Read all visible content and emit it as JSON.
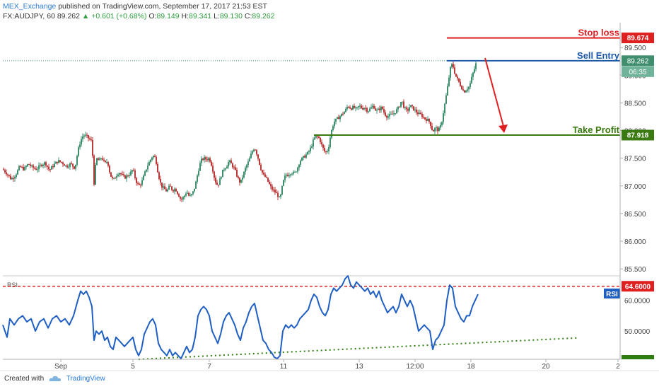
{
  "header": {
    "publisher": "MEX_Exchange",
    "published_text": "published on TradingView.com, September 17, 2017 21:53 EST",
    "symbol": "FX:AUDJPY, 60",
    "last": "89.262",
    "change": "+0.601 (+0.68%)",
    "open_label": "O:",
    "open": "89.149",
    "high_label": "H:",
    "high": "89.341",
    "low_label": "L:",
    "low": "89.130",
    "close_label": "C:",
    "close": "89.262"
  },
  "footer": {
    "created_with": "Created with",
    "brand": "TradingView"
  },
  "colors": {
    "up": "#3f8f6f",
    "down": "#b83a3a",
    "stop": "#e02020",
    "entry": "#1e5aa8",
    "take_profit": "#3a7a10",
    "rsi_line": "#1f5fc4",
    "rsi_level": "#e02020",
    "rsi_trend": "#2e7d10"
  },
  "chart_data": [
    {
      "type": "candlestick",
      "y_axis_ticks": [
        "89.500",
        "89.000",
        "88.500",
        "88.000",
        "87.500",
        "87.000",
        "86.500",
        "86.000",
        "85.500"
      ],
      "x_axis_ticks": [
        "Sep",
        "5",
        "7",
        "11",
        "13",
        "12:00",
        "18",
        "20",
        "2"
      ],
      "ylim": [
        85.4,
        89.95
      ],
      "current_price_label": "89.262",
      "countdown": "06:35",
      "levels": [
        {
          "name": "Stop loss",
          "value": 89.674,
          "label": "89.674",
          "color": "#e02020"
        },
        {
          "name": "Sell Entry",
          "value": 89.262,
          "label": "89.262",
          "color": "#1e5aa8"
        },
        {
          "name": "Take Profit",
          "value": 87.918,
          "label": "87.918",
          "color": "#3a7a10"
        }
      ],
      "close_path": [
        [
          0,
          87.3
        ],
        [
          6,
          87.22
        ],
        [
          12,
          87.12
        ],
        [
          18,
          87.2
        ],
        [
          24,
          87.35
        ],
        [
          30,
          87.3
        ],
        [
          36,
          87.4
        ],
        [
          42,
          87.33
        ],
        [
          48,
          87.3
        ],
        [
          54,
          87.38
        ],
        [
          60,
          87.42
        ],
        [
          66,
          87.28
        ],
        [
          72,
          87.38
        ],
        [
          78,
          87.45
        ],
        [
          84,
          87.42
        ],
        [
          90,
          87.35
        ],
        [
          96,
          87.4
        ],
        [
          102,
          87.32
        ],
        [
          106,
          87.62
        ],
        [
          110,
          87.82
        ],
        [
          114,
          87.92
        ],
        [
          118,
          87.9
        ],
        [
          122,
          87.85
        ],
        [
          126,
          87.8
        ],
        [
          129,
          87.05
        ],
        [
          132,
          87.5
        ],
        [
          136,
          87.45
        ],
        [
          140,
          87.52
        ],
        [
          144,
          87.4
        ],
        [
          148,
          87.45
        ],
        [
          152,
          87.2
        ],
        [
          156,
          87.1
        ],
        [
          160,
          87.18
        ],
        [
          164,
          87.25
        ],
        [
          168,
          87.2
        ],
        [
          172,
          87.15
        ],
        [
          176,
          87.18
        ],
        [
          180,
          87.22
        ],
        [
          184,
          87.3
        ],
        [
          188,
          87.1
        ],
        [
          192,
          87.0
        ],
        [
          196,
          87.05
        ],
        [
          200,
          87.2
        ],
        [
          204,
          87.35
        ],
        [
          208,
          87.45
        ],
        [
          212,
          87.55
        ],
        [
          216,
          87.5
        ],
        [
          220,
          87.2
        ],
        [
          224,
          87.0
        ],
        [
          228,
          86.95
        ],
        [
          232,
          86.9
        ],
        [
          236,
          87.0
        ],
        [
          240,
          86.92
        ],
        [
          244,
          86.95
        ],
        [
          248,
          86.85
        ],
        [
          252,
          86.75
        ],
        [
          256,
          86.8
        ],
        [
          260,
          86.9
        ],
        [
          264,
          86.8
        ],
        [
          268,
          86.85
        ],
        [
          272,
          87.0
        ],
        [
          276,
          87.25
        ],
        [
          280,
          87.45
        ],
        [
          284,
          87.5
        ],
        [
          288,
          87.48
        ],
        [
          292,
          87.5
        ],
        [
          296,
          87.35
        ],
        [
          300,
          87.1
        ],
        [
          304,
          87.0
        ],
        [
          308,
          87.15
        ],
        [
          312,
          87.3
        ],
        [
          316,
          87.35
        ],
        [
          320,
          87.45
        ],
        [
          324,
          87.38
        ],
        [
          328,
          87.3
        ],
        [
          332,
          87.15
        ],
        [
          336,
          87.05
        ],
        [
          340,
          87.2
        ],
        [
          344,
          87.35
        ],
        [
          348,
          87.45
        ],
        [
          352,
          87.6
        ],
        [
          356,
          87.7
        ],
        [
          360,
          87.55
        ],
        [
          364,
          87.35
        ],
        [
          368,
          87.2
        ],
        [
          372,
          87.15
        ],
        [
          376,
          87.05
        ],
        [
          380,
          86.95
        ],
        [
          384,
          86.9
        ],
        [
          388,
          86.85
        ],
        [
          392,
          86.75
        ],
        [
          396,
          87.05
        ],
        [
          400,
          87.2
        ],
        [
          404,
          87.2
        ],
        [
          408,
          87.25
        ],
        [
          412,
          87.22
        ],
        [
          416,
          87.3
        ],
        [
          420,
          87.45
        ],
        [
          424,
          87.5
        ],
        [
          428,
          87.55
        ],
        [
          432,
          87.6
        ],
        [
          436,
          87.7
        ],
        [
          440,
          87.85
        ],
        [
          444,
          87.9
        ],
        [
          448,
          87.85
        ],
        [
          452,
          87.7
        ],
        [
          456,
          87.6
        ],
        [
          460,
          87.65
        ],
        [
          464,
          87.95
        ],
        [
          468,
          88.15
        ],
        [
          472,
          88.2
        ],
        [
          476,
          88.25
        ],
        [
          480,
          88.3
        ],
        [
          484,
          88.35
        ],
        [
          488,
          88.45
        ],
        [
          492,
          88.4
        ],
        [
          496,
          88.42
        ],
        [
          500,
          88.38
        ],
        [
          504,
          88.45
        ],
        [
          508,
          88.4
        ],
        [
          512,
          88.42
        ],
        [
          516,
          88.35
        ],
        [
          520,
          88.4
        ],
        [
          524,
          88.45
        ],
        [
          528,
          88.35
        ],
        [
          532,
          88.38
        ],
        [
          536,
          88.42
        ],
        [
          540,
          88.3
        ],
        [
          544,
          88.25
        ],
        [
          548,
          88.28
        ],
        [
          552,
          88.3
        ],
        [
          556,
          88.35
        ],
        [
          560,
          88.42
        ],
        [
          564,
          88.55
        ],
        [
          568,
          88.4
        ],
        [
          572,
          88.35
        ],
        [
          576,
          88.45
        ],
        [
          580,
          88.4
        ],
        [
          584,
          88.35
        ],
        [
          588,
          88.3
        ],
        [
          592,
          88.28
        ],
        [
          596,
          88.22
        ],
        [
          600,
          88.2
        ],
        [
          604,
          88.15
        ],
        [
          608,
          87.98
        ],
        [
          612,
          88.05
        ],
        [
          616,
          88.0
        ],
        [
          620,
          88.1
        ],
        [
          624,
          88.4
        ],
        [
          628,
          88.7
        ],
        [
          632,
          89.05
        ],
        [
          634,
          89.2
        ],
        [
          637,
          89.15
        ],
        [
          640,
          89.0
        ],
        [
          644,
          88.9
        ],
        [
          648,
          88.8
        ],
        [
          652,
          88.7
        ],
        [
          656,
          88.75
        ],
        [
          660,
          88.8
        ],
        [
          664,
          89.0
        ],
        [
          668,
          89.15
        ],
        [
          670,
          89.26
        ]
      ]
    },
    {
      "type": "line",
      "title": "RSI",
      "badge": "RSI",
      "y_axis_ticks": [
        "60.0000",
        "50.0000"
      ],
      "ylim": [
        40.8,
        68.0
      ],
      "level": {
        "value": 64.6,
        "label": "64.6000"
      },
      "trendline": {
        "from": [
          192,
          40.8
        ],
        "to": [
          815,
          47.8
        ]
      },
      "series": [
        [
          0,
          52
        ],
        [
          6,
          48
        ],
        [
          10,
          54
        ],
        [
          16,
          52
        ],
        [
          22,
          54
        ],
        [
          28,
          55
        ],
        [
          34,
          53
        ],
        [
          40,
          54
        ],
        [
          46,
          50
        ],
        [
          52,
          53
        ],
        [
          58,
          54
        ],
        [
          64,
          51
        ],
        [
          70,
          54
        ],
        [
          76,
          55
        ],
        [
          82,
          53
        ],
        [
          88,
          54
        ],
        [
          94,
          52
        ],
        [
          100,
          55
        ],
        [
          106,
          60
        ],
        [
          110,
          63
        ],
        [
          114,
          62
        ],
        [
          118,
          63
        ],
        [
          122,
          61
        ],
        [
          126,
          58
        ],
        [
          129,
          47
        ],
        [
          132,
          50
        ],
        [
          136,
          49
        ],
        [
          140,
          50
        ],
        [
          144,
          47
        ],
        [
          148,
          48
        ],
        [
          152,
          45
        ],
        [
          156,
          44
        ],
        [
          160,
          48
        ],
        [
          164,
          47
        ],
        [
          168,
          46
        ],
        [
          172,
          45
        ],
        [
          176,
          46
        ],
        [
          180,
          47
        ],
        [
          184,
          48
        ],
        [
          188,
          44
        ],
        [
          192,
          42
        ],
        [
          196,
          44
        ],
        [
          200,
          49
        ],
        [
          204,
          51
        ],
        [
          208,
          53
        ],
        [
          212,
          54
        ],
        [
          216,
          52
        ],
        [
          220,
          46
        ],
        [
          224,
          44
        ],
        [
          228,
          43
        ],
        [
          232,
          42
        ],
        [
          236,
          44
        ],
        [
          240,
          42
        ],
        [
          244,
          43
        ],
        [
          248,
          42
        ],
        [
          252,
          41
        ],
        [
          256,
          43
        ],
        [
          260,
          45
        ],
        [
          264,
          43
        ],
        [
          268,
          44
        ],
        [
          272,
          48
        ],
        [
          276,
          55
        ],
        [
          280,
          57
        ],
        [
          284,
          58
        ],
        [
          288,
          57
        ],
        [
          292,
          55
        ],
        [
          296,
          50
        ],
        [
          300,
          48
        ],
        [
          304,
          46
        ],
        [
          308,
          49
        ],
        [
          312,
          53
        ],
        [
          316,
          55
        ],
        [
          320,
          56
        ],
        [
          324,
          54
        ],
        [
          328,
          52
        ],
        [
          332,
          49
        ],
        [
          336,
          47
        ],
        [
          340,
          51
        ],
        [
          344,
          53
        ],
        [
          348,
          56
        ],
        [
          352,
          58
        ],
        [
          356,
          59
        ],
        [
          360,
          55
        ],
        [
          364,
          51
        ],
        [
          368,
          47
        ],
        [
          372,
          46
        ],
        [
          376,
          44
        ],
        [
          380,
          43
        ],
        [
          384,
          41.5
        ],
        [
          388,
          41
        ],
        [
          392,
          42
        ],
        [
          396,
          50
        ],
        [
          400,
          52
        ],
        [
          404,
          51
        ],
        [
          408,
          52
        ],
        [
          412,
          51
        ],
        [
          416,
          52
        ],
        [
          420,
          54
        ],
        [
          424,
          55
        ],
        [
          428,
          56
        ],
        [
          432,
          57
        ],
        [
          436,
          60
        ],
        [
          440,
          62
        ],
        [
          444,
          61
        ],
        [
          448,
          58
        ],
        [
          452,
          56
        ],
        [
          456,
          55
        ],
        [
          460,
          57
        ],
        [
          464,
          62
        ],
        [
          468,
          64
        ],
        [
          472,
          63
        ],
        [
          476,
          64
        ],
        [
          480,
          65
        ],
        [
          484,
          67
        ],
        [
          488,
          68
        ],
        [
          492,
          65
        ],
        [
          496,
          64
        ],
        [
          500,
          66
        ],
        [
          504,
          65
        ],
        [
          508,
          64
        ],
        [
          512,
          63
        ],
        [
          516,
          64
        ],
        [
          520,
          62
        ],
        [
          524,
          63
        ],
        [
          528,
          61
        ],
        [
          532,
          63
        ],
        [
          536,
          60
        ],
        [
          540,
          58
        ],
        [
          544,
          56
        ],
        [
          548,
          57
        ],
        [
          552,
          58
        ],
        [
          556,
          56
        ],
        [
          560,
          58
        ],
        [
          564,
          62
        ],
        [
          568,
          60
        ],
        [
          572,
          58
        ],
        [
          576,
          60
        ],
        [
          580,
          58
        ],
        [
          584,
          54
        ],
        [
          588,
          50
        ],
        [
          592,
          51
        ],
        [
          596,
          52
        ],
        [
          600,
          51
        ],
        [
          604,
          50
        ],
        [
          608,
          44
        ],
        [
          612,
          47
        ],
        [
          616,
          48
        ],
        [
          620,
          50
        ],
        [
          624,
          52
        ],
        [
          628,
          60
        ],
        [
          632,
          65
        ],
        [
          636,
          64
        ],
        [
          640,
          58
        ],
        [
          644,
          56
        ],
        [
          648,
          54
        ],
        [
          652,
          53
        ],
        [
          656,
          55
        ],
        [
          660,
          55
        ],
        [
          664,
          58
        ],
        [
          668,
          60
        ],
        [
          672,
          62
        ]
      ]
    }
  ]
}
